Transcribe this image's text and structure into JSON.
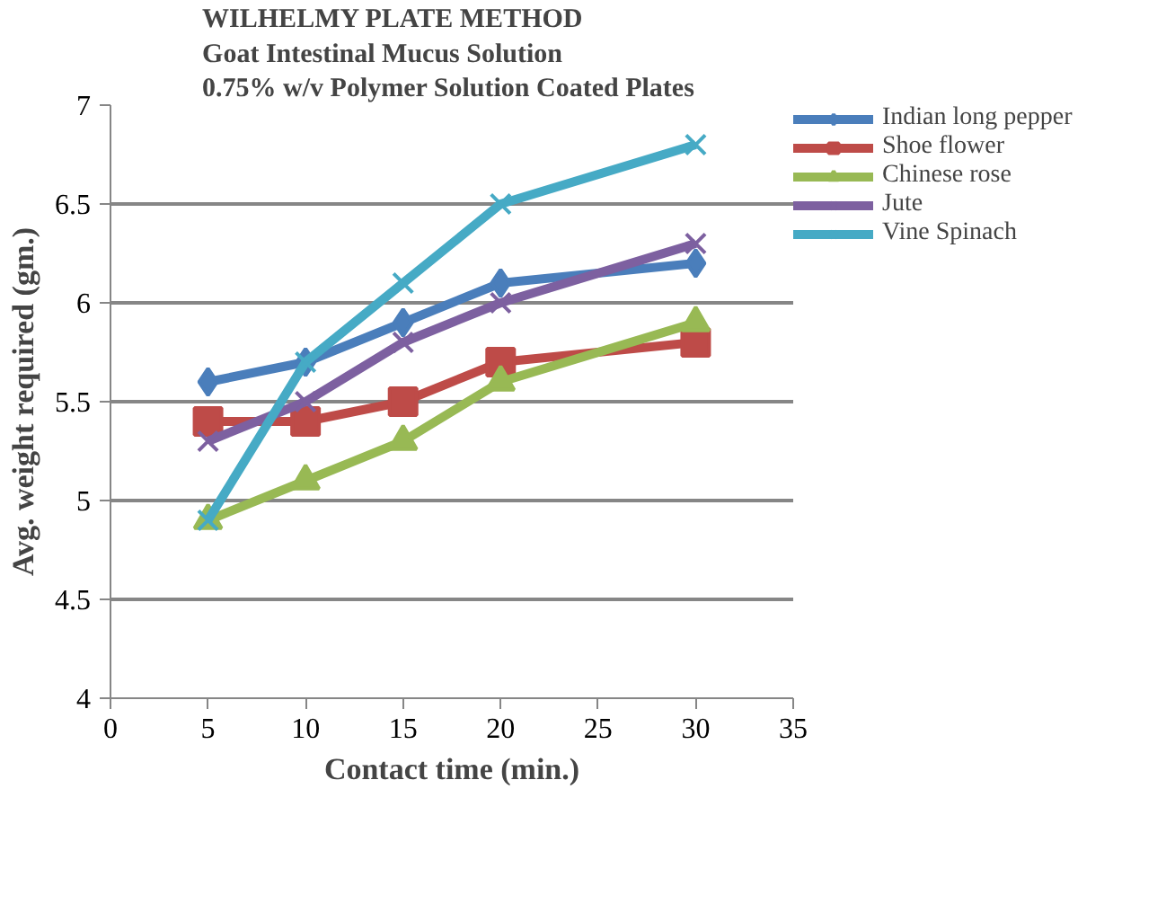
{
  "chart_data": {
    "type": "line",
    "title": "WILHELMY PLATE METHOD\nGoat Intestinal Mucus Solution\n0.75% w/v  Polymer Solution Coated Plates",
    "xlabel": "Contact time (min.)",
    "ylabel": "Avg. weight required (gm.)",
    "x": [
      5,
      10,
      15,
      20,
      30
    ],
    "series": [
      {
        "name": "Indian long pepper",
        "color": "#4a7ebb",
        "marker": "diamond",
        "values": [
          5.6,
          5.7,
          5.9,
          6.1,
          6.2
        ]
      },
      {
        "name": "Shoe flower",
        "color": "#be4b48",
        "marker": "square",
        "values": [
          5.4,
          5.4,
          5.5,
          5.7,
          5.8
        ]
      },
      {
        "name": "Chinese rose",
        "color": "#98b954",
        "marker": "triangle",
        "values": [
          4.9,
          5.1,
          5.3,
          5.6,
          5.9
        ]
      },
      {
        "name": "Jute",
        "color": "#7d60a0",
        "marker": "cross",
        "values": [
          5.3,
          5.5,
          5.8,
          6.0,
          6.3
        ]
      },
      {
        "name": "Vine Spinach",
        "color": "#46aac5",
        "marker": "cross",
        "values": [
          4.9,
          5.7,
          6.1,
          6.5,
          6.8
        ]
      }
    ],
    "xlim": [
      0,
      35
    ],
    "xticks": [
      0,
      5,
      10,
      15,
      20,
      25,
      30,
      35
    ],
    "ylim": [
      4,
      7
    ],
    "yticks": [
      4,
      4.5,
      5,
      5.5,
      6,
      6.5,
      7
    ],
    "grid": "y",
    "legend": "top right",
    "line_style": "solid"
  }
}
